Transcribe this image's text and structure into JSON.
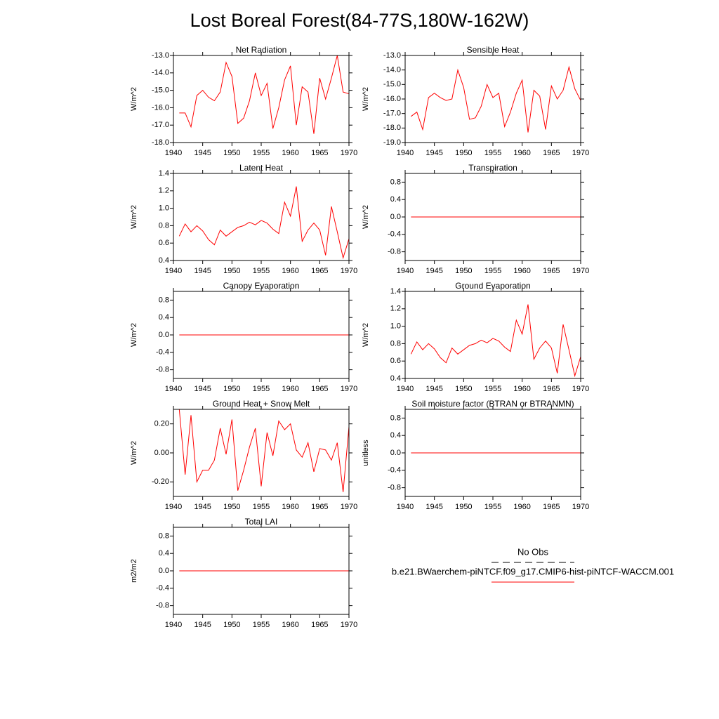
{
  "title": "Lost Boreal Forest(84-77S,180W-162W)",
  "legend": [
    {
      "name": "No Obs",
      "color": "#000000",
      "dash": true
    },
    {
      "name": "b.e21.BWaerchem-piNTCF.f09_g17.CMIP6-hist-piNTCF-WACCM.001",
      "color": "#ff0000"
    }
  ],
  "chart_data": [
    {
      "type": "line",
      "title": "Net Radiation",
      "ylabel": "W/m^2",
      "x": [
        1941,
        1942,
        1943,
        1944,
        1945,
        1946,
        1947,
        1948,
        1949,
        1950,
        1951,
        1952,
        1953,
        1954,
        1955,
        1956,
        1957,
        1958,
        1959,
        1960,
        1961,
        1962,
        1963,
        1964,
        1965,
        1966,
        1967,
        1968,
        1969,
        1970
      ],
      "series": [
        {
          "color": "#ff0000",
          "values": [
            -16.3,
            -16.3,
            -17.1,
            -15.3,
            -15.0,
            -15.4,
            -15.6,
            -15.1,
            -13.4,
            -14.2,
            -16.9,
            -16.6,
            -15.6,
            -14.0,
            -15.3,
            -14.6,
            -17.2,
            -16.0,
            -14.4,
            -13.6,
            -17.0,
            -14.8,
            -15.1,
            -17.5,
            -14.3,
            -15.5,
            -14.3,
            -13.0,
            -15.1,
            -15.2
          ]
        }
      ],
      "xlim": [
        1940,
        1970
      ],
      "xticks": [
        1940,
        1945,
        1950,
        1955,
        1960,
        1965,
        1970
      ],
      "ylim": [
        -18,
        -13
      ],
      "yticks": [
        {
          "value": -18,
          "label": "-18.0"
        },
        {
          "value": -17,
          "label": "-17.0"
        },
        {
          "value": -16,
          "label": "-16.0"
        },
        {
          "value": -15,
          "label": "-15.0"
        },
        {
          "value": -14,
          "label": "-14.0"
        },
        {
          "value": -13,
          "label": "-13.0"
        }
      ]
    },
    {
      "type": "line",
      "title": "Sensible Heat",
      "ylabel": "W/m^2",
      "x": [
        1941,
        1942,
        1943,
        1944,
        1945,
        1946,
        1947,
        1948,
        1949,
        1950,
        1951,
        1952,
        1953,
        1954,
        1955,
        1956,
        1957,
        1958,
        1959,
        1960,
        1961,
        1962,
        1963,
        1964,
        1965,
        1966,
        1967,
        1968,
        1969,
        1970
      ],
      "series": [
        {
          "color": "#ff0000",
          "values": [
            -17.2,
            -16.9,
            -18.1,
            -15.9,
            -15.6,
            -15.9,
            -16.1,
            -16.0,
            -14.0,
            -15.2,
            -17.4,
            -17.3,
            -16.5,
            -15.0,
            -15.9,
            -15.6,
            -17.9,
            -16.9,
            -15.6,
            -14.7,
            -18.3,
            -15.4,
            -15.8,
            -18.1,
            -15.1,
            -16.0,
            -15.4,
            -13.8,
            -15.3,
            -16.1
          ]
        }
      ],
      "xlim": [
        1940,
        1970
      ],
      "xticks": [
        1940,
        1945,
        1950,
        1955,
        1960,
        1965,
        1970
      ],
      "ylim": [
        -19,
        -13
      ],
      "yticks": [
        {
          "value": -19,
          "label": "-19.0"
        },
        {
          "value": -18,
          "label": "-18.0"
        },
        {
          "value": -17,
          "label": "-17.0"
        },
        {
          "value": -16,
          "label": "-16.0"
        },
        {
          "value": -15,
          "label": "-15.0"
        },
        {
          "value": -14,
          "label": "-14.0"
        },
        {
          "value": -13,
          "label": "-13.0"
        }
      ]
    },
    {
      "type": "line",
      "title": "Latent Heat",
      "ylabel": "W/m^2",
      "x": [
        1941,
        1942,
        1943,
        1944,
        1945,
        1946,
        1947,
        1948,
        1949,
        1950,
        1951,
        1952,
        1953,
        1954,
        1955,
        1956,
        1957,
        1958,
        1959,
        1960,
        1961,
        1962,
        1963,
        1964,
        1965,
        1966,
        1967,
        1968,
        1969,
        1970
      ],
      "series": [
        {
          "color": "#ff0000",
          "values": [
            0.68,
            0.82,
            0.73,
            0.8,
            0.74,
            0.64,
            0.58,
            0.75,
            0.68,
            0.73,
            0.78,
            0.8,
            0.84,
            0.81,
            0.86,
            0.83,
            0.76,
            0.71,
            1.07,
            0.91,
            1.25,
            0.62,
            0.75,
            0.83,
            0.75,
            0.46,
            1.02,
            0.73,
            0.43,
            0.65
          ]
        }
      ],
      "xlim": [
        1940,
        1970
      ],
      "xticks": [
        1940,
        1945,
        1950,
        1955,
        1960,
        1965,
        1970
      ],
      "ylim": [
        0.4,
        1.4
      ],
      "yticks": [
        0.4,
        0.6,
        0.8,
        {
          "value": 1,
          "label": "1.0"
        },
        1.2,
        1.4
      ]
    },
    {
      "type": "line",
      "title": "Transpiration",
      "ylabel": "W/m^2",
      "x": [
        1941,
        1942,
        1943,
        1944,
        1945,
        1946,
        1947,
        1948,
        1949,
        1950,
        1951,
        1952,
        1953,
        1954,
        1955,
        1956,
        1957,
        1958,
        1959,
        1960,
        1961,
        1962,
        1963,
        1964,
        1965,
        1966,
        1967,
        1968,
        1969,
        1970
      ],
      "series": [
        {
          "color": "#ff0000",
          "values": [
            0,
            0,
            0,
            0,
            0,
            0,
            0,
            0,
            0,
            0,
            0,
            0,
            0,
            0,
            0,
            0,
            0,
            0,
            0,
            0,
            0,
            0,
            0,
            0,
            0,
            0,
            0,
            0,
            0,
            0
          ]
        }
      ],
      "xlim": [
        1940,
        1970
      ],
      "xticks": [
        1940,
        1945,
        1950,
        1955,
        1960,
        1965,
        1970
      ],
      "ylim": [
        -1,
        1
      ],
      "yticks": [
        -0.8,
        -0.4,
        {
          "value": 0,
          "label": "0.0"
        },
        0.4,
        0.8
      ]
    },
    {
      "type": "line",
      "title": "Canopy Evaporation",
      "ylabel": "W/m^2",
      "x": [
        1941,
        1942,
        1943,
        1944,
        1945,
        1946,
        1947,
        1948,
        1949,
        1950,
        1951,
        1952,
        1953,
        1954,
        1955,
        1956,
        1957,
        1958,
        1959,
        1960,
        1961,
        1962,
        1963,
        1964,
        1965,
        1966,
        1967,
        1968,
        1969,
        1970
      ],
      "series": [
        {
          "color": "#ff0000",
          "values": [
            0,
            0,
            0,
            0,
            0,
            0,
            0,
            0,
            0,
            0,
            0,
            0,
            0,
            0,
            0,
            0,
            0,
            0,
            0,
            0,
            0,
            0,
            0,
            0,
            0,
            0,
            0,
            0,
            0,
            0
          ]
        }
      ],
      "xlim": [
        1940,
        1970
      ],
      "xticks": [
        1940,
        1945,
        1950,
        1955,
        1960,
        1965,
        1970
      ],
      "ylim": [
        -1,
        1
      ],
      "yticks": [
        -0.8,
        -0.4,
        {
          "value": 0,
          "label": "0.0"
        },
        0.4,
        0.8
      ]
    },
    {
      "type": "line",
      "title": "Ground Evaporation",
      "ylabel": "W/m^2",
      "x": [
        1941,
        1942,
        1943,
        1944,
        1945,
        1946,
        1947,
        1948,
        1949,
        1950,
        1951,
        1952,
        1953,
        1954,
        1955,
        1956,
        1957,
        1958,
        1959,
        1960,
        1961,
        1962,
        1963,
        1964,
        1965,
        1966,
        1967,
        1968,
        1969,
        1970
      ],
      "series": [
        {
          "color": "#ff0000",
          "values": [
            0.68,
            0.82,
            0.73,
            0.8,
            0.74,
            0.64,
            0.58,
            0.75,
            0.68,
            0.73,
            0.78,
            0.8,
            0.84,
            0.81,
            0.86,
            0.83,
            0.76,
            0.71,
            1.07,
            0.91,
            1.25,
            0.62,
            0.75,
            0.83,
            0.75,
            0.46,
            1.02,
            0.73,
            0.43,
            0.65
          ]
        }
      ],
      "xlim": [
        1940,
        1970
      ],
      "xticks": [
        1940,
        1945,
        1950,
        1955,
        1960,
        1965,
        1970
      ],
      "ylim": [
        0.4,
        1.4
      ],
      "yticks": [
        0.4,
        0.6,
        0.8,
        {
          "value": 1,
          "label": "1.0"
        },
        1.2,
        1.4
      ]
    },
    {
      "type": "line",
      "title": "Ground Heat + Snow Melt",
      "ylabel": "W/m^2",
      "x": [
        1941,
        1942,
        1943,
        1944,
        1945,
        1946,
        1947,
        1948,
        1949,
        1950,
        1951,
        1952,
        1953,
        1954,
        1955,
        1956,
        1957,
        1958,
        1959,
        1960,
        1961,
        1962,
        1963,
        1964,
        1965,
        1966,
        1967,
        1968,
        1969,
        1970
      ],
      "series": [
        {
          "color": "#ff0000",
          "values": [
            0.3,
            -0.15,
            0.26,
            -0.2,
            -0.12,
            -0.12,
            -0.05,
            0.17,
            -0.01,
            0.23,
            -0.26,
            -0.12,
            0.04,
            0.17,
            -0.23,
            0.14,
            -0.02,
            0.22,
            0.16,
            0.2,
            0.02,
            -0.03,
            0.07,
            -0.13,
            0.03,
            0.02,
            -0.05,
            0.07,
            -0.27,
            0.18
          ]
        }
      ],
      "xlim": [
        1940,
        1970
      ],
      "xticks": [
        1940,
        1945,
        1950,
        1955,
        1960,
        1965,
        1970
      ],
      "ylim": [
        -0.3,
        0.3
      ],
      "yticks": [
        {
          "value": -0.2,
          "label": "-0.20"
        },
        {
          "value": 0,
          "label": "0.00"
        },
        {
          "value": 0.2,
          "label": "0.20"
        }
      ]
    },
    {
      "type": "line",
      "title": "Soil moisture factor (BTRAN or BTRANMN)",
      "ylabel": "unitless",
      "x": [
        1941,
        1942,
        1943,
        1944,
        1945,
        1946,
        1947,
        1948,
        1949,
        1950,
        1951,
        1952,
        1953,
        1954,
        1955,
        1956,
        1957,
        1958,
        1959,
        1960,
        1961,
        1962,
        1963,
        1964,
        1965,
        1966,
        1967,
        1968,
        1969,
        1970
      ],
      "series": [
        {
          "color": "#ff0000",
          "values": [
            0,
            0,
            0,
            0,
            0,
            0,
            0,
            0,
            0,
            0,
            0,
            0,
            0,
            0,
            0,
            0,
            0,
            0,
            0,
            0,
            0,
            0,
            0,
            0,
            0,
            0,
            0,
            0,
            0,
            0
          ]
        }
      ],
      "xlim": [
        1940,
        1970
      ],
      "xticks": [
        1940,
        1945,
        1950,
        1955,
        1960,
        1965,
        1970
      ],
      "ylim": [
        -1,
        1
      ],
      "yticks": [
        -0.8,
        -0.4,
        {
          "value": 0,
          "label": "0.0"
        },
        0.4,
        0.8
      ]
    },
    {
      "type": "line",
      "title": "Total LAI",
      "ylabel": "m2/m2",
      "x": [
        1941,
        1942,
        1943,
        1944,
        1945,
        1946,
        1947,
        1948,
        1949,
        1950,
        1951,
        1952,
        1953,
        1954,
        1955,
        1956,
        1957,
        1958,
        1959,
        1960,
        1961,
        1962,
        1963,
        1964,
        1965,
        1966,
        1967,
        1968,
        1969,
        1970
      ],
      "series": [
        {
          "color": "#ff0000",
          "values": [
            0,
            0,
            0,
            0,
            0,
            0,
            0,
            0,
            0,
            0,
            0,
            0,
            0,
            0,
            0,
            0,
            0,
            0,
            0,
            0,
            0,
            0,
            0,
            0,
            0,
            0,
            0,
            0,
            0,
            0
          ]
        }
      ],
      "xlim": [
        1940,
        1970
      ],
      "xticks": [
        1940,
        1945,
        1950,
        1955,
        1960,
        1965,
        1970
      ],
      "ylim": [
        -1,
        1
      ],
      "yticks": [
        -0.8,
        -0.4,
        {
          "value": 0,
          "label": "0.0"
        },
        0.4,
        0.8
      ]
    }
  ]
}
